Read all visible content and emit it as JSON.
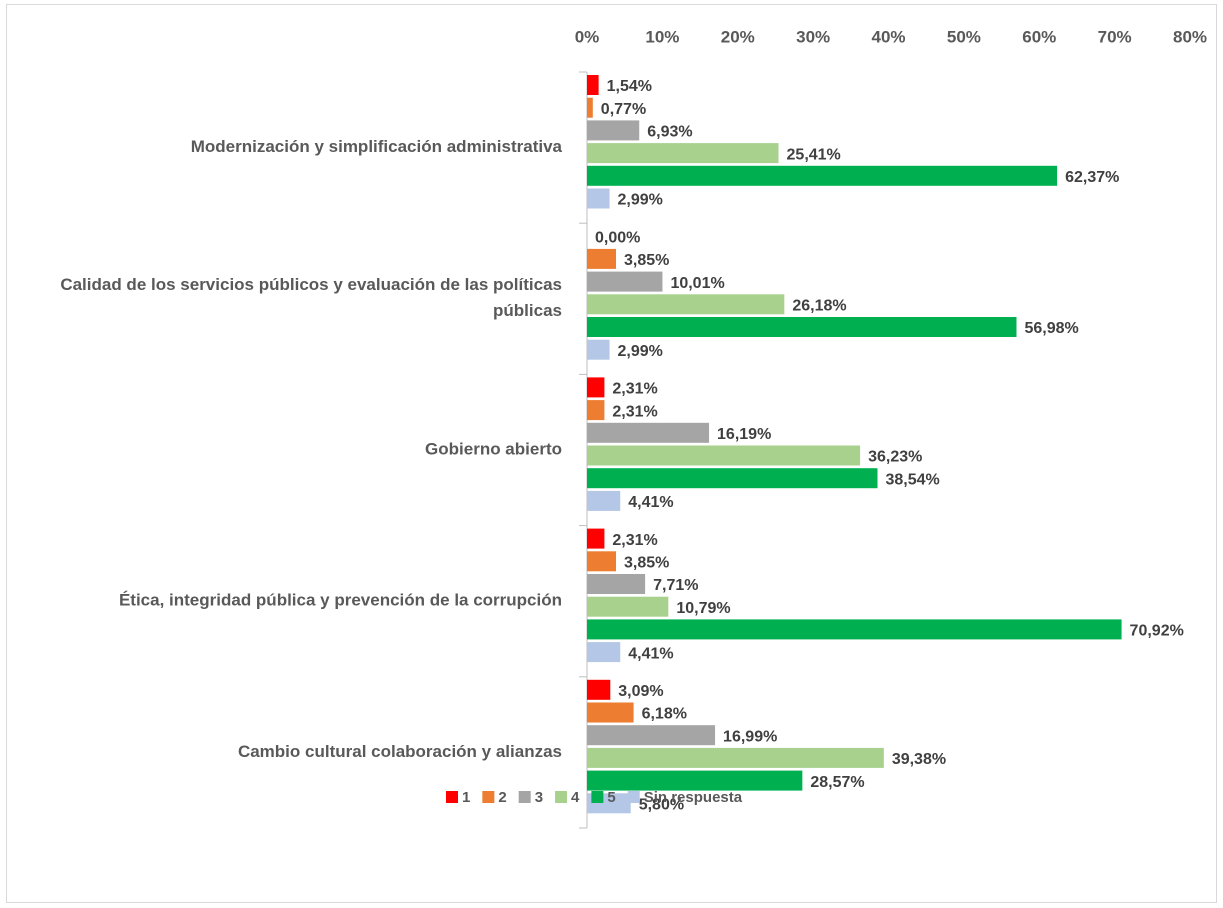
{
  "chart_data": {
    "type": "hbar",
    "categories": [
      "Modernización y simplificación administrativa",
      "Calidad de los servicios públicos y evaluación de las políticas públicas",
      "Gobierno abierto",
      "Ética, integridad pública y prevención de la corrupción",
      "Cambio cultural colaboración y alianzas"
    ],
    "series": [
      {
        "name": "1",
        "color": "#ff0000",
        "values": [
          1.54,
          0.0,
          2.31,
          2.31,
          3.09
        ],
        "value_labels": [
          "1,54%",
          "0,00%",
          "2,31%",
          "2,31%",
          "3,09%"
        ]
      },
      {
        "name": "2",
        "color": "#ed7d31",
        "values": [
          0.77,
          3.85,
          2.31,
          3.85,
          6.18
        ],
        "value_labels": [
          "0,77%",
          "3,85%",
          "2,31%",
          "3,85%",
          "6,18%"
        ]
      },
      {
        "name": "3",
        "color": "#a5a5a5",
        "values": [
          6.93,
          10.01,
          16.19,
          7.71,
          16.99
        ],
        "value_labels": [
          "6,93%",
          "10,01%",
          "16,19%",
          "7,71%",
          "16,99%"
        ]
      },
      {
        "name": "4",
        "color": "#a9d18e",
        "values": [
          25.41,
          26.18,
          36.23,
          10.79,
          39.38
        ],
        "value_labels": [
          "25,41%",
          "26,18%",
          "36,23%",
          "10,79%",
          "39,38%"
        ]
      },
      {
        "name": "5",
        "color": "#00b050",
        "values": [
          62.37,
          56.98,
          38.54,
          70.92,
          28.57
        ],
        "value_labels": [
          "62,37%",
          "56,98%",
          "38,54%",
          "70,92%",
          "28,57%"
        ]
      },
      {
        "name": "Sin respuesta",
        "color": "#b4c7e7",
        "values": [
          2.99,
          2.99,
          4.41,
          4.41,
          5.8
        ],
        "value_labels": [
          "2,99%",
          "2,99%",
          "4,41%",
          "4,41%",
          "5,80%"
        ]
      }
    ],
    "xlim": [
      0,
      80
    ],
    "xticks": [
      {
        "value": 0,
        "label": "0%"
      },
      {
        "value": 10,
        "label": "10%"
      },
      {
        "value": 20,
        "label": "20%"
      },
      {
        "value": 30,
        "label": "30%"
      },
      {
        "value": 40,
        "label": "40%"
      },
      {
        "value": 50,
        "label": "50%"
      },
      {
        "value": 60,
        "label": "60%"
      },
      {
        "value": 70,
        "label": "70%"
      },
      {
        "value": 80,
        "label": "80%"
      }
    ],
    "legend": "bottom"
  }
}
